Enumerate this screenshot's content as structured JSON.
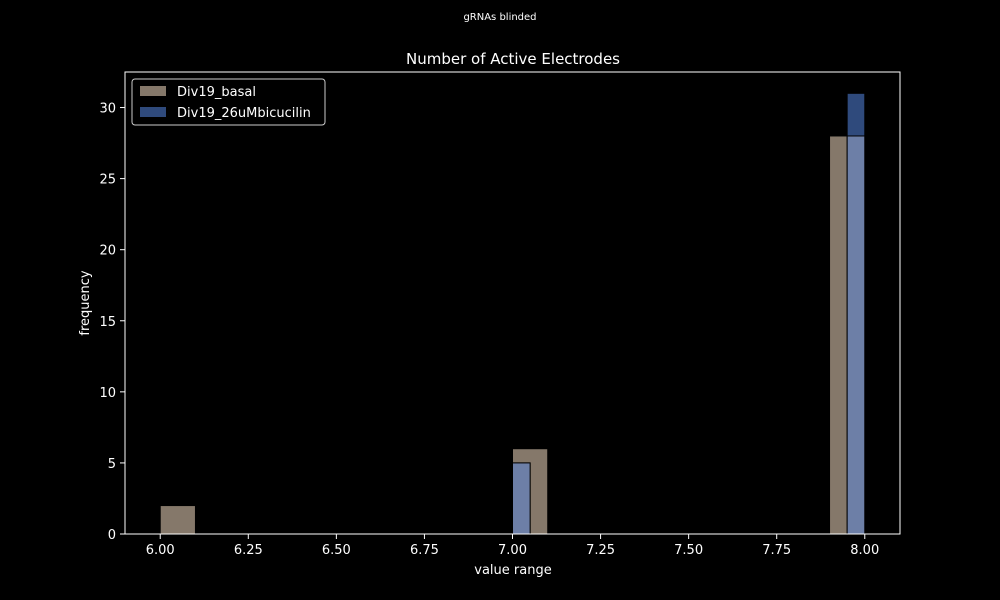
{
  "figure": {
    "suptitle": "gRNAs blinded"
  },
  "chart_data": {
    "type": "bar",
    "title": "Number of Active Electrodes",
    "xlabel": "value range",
    "ylabel": "frequency",
    "xlim": [
      5.9,
      8.1
    ],
    "ylim": [
      0,
      32.5
    ],
    "x_ticks": [
      6.0,
      6.25,
      6.5,
      6.75,
      7.0,
      7.25,
      7.5,
      7.75,
      8.0
    ],
    "x_tick_labels": [
      "6.00",
      "6.25",
      "6.50",
      "6.75",
      "7.00",
      "7.25",
      "7.50",
      "7.75",
      "8.00"
    ],
    "y_ticks": [
      0,
      5,
      10,
      15,
      20,
      25,
      30
    ],
    "y_tick_labels": [
      "0",
      "5",
      "10",
      "15",
      "20",
      "25",
      "30"
    ],
    "grid": false,
    "legend_position": "top-left",
    "series": [
      {
        "name": "Div19_basal",
        "color": "#85786a",
        "bins": [
          {
            "x0": 6.0,
            "x1": 6.1,
            "count": 2
          },
          {
            "x0": 7.0,
            "x1": 7.1,
            "count": 6
          },
          {
            "x0": 7.9,
            "x1": 8.0,
            "count": 28
          }
        ]
      },
      {
        "name": "Div19_26uMbicucilin",
        "color": "#2f4a7c",
        "bins": [
          {
            "x0": 7.0,
            "x1": 7.05,
            "count": 5
          },
          {
            "x0": 7.95,
            "x1": 8.0,
            "count": 31
          }
        ]
      }
    ],
    "overlap_color": "#6d7fa7"
  }
}
